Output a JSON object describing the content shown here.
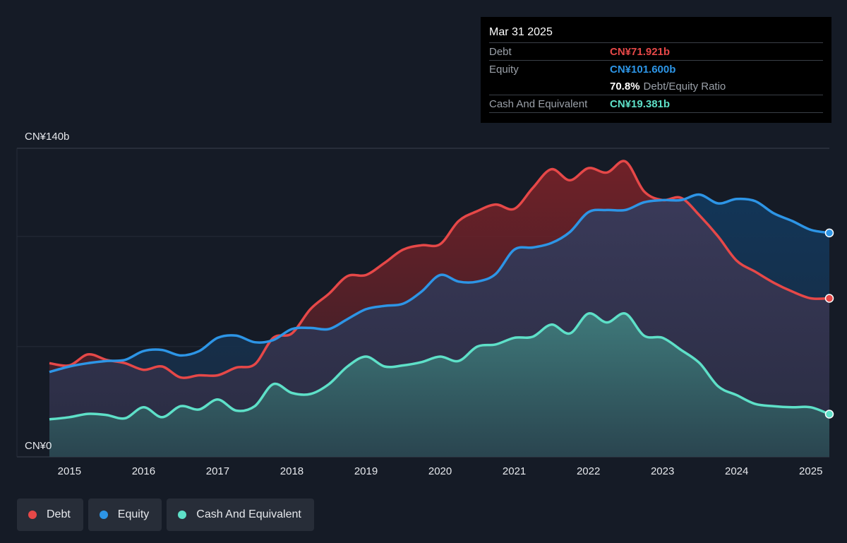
{
  "chart_data": {
    "type": "area",
    "ylim": [
      0,
      140
    ],
    "y_tick_labels": [
      "CN¥140b",
      "CN¥0"
    ],
    "x_ticks": [
      2015,
      2016,
      2017,
      2018,
      2019,
      2020,
      2021,
      2022,
      2023,
      2024,
      2025
    ],
    "x_range": [
      2014.73,
      2025.25
    ],
    "grid": true,
    "legend_position": "bottom-left",
    "series": [
      {
        "name": "Debt",
        "color": "#e64848",
        "x": [
          2014.73,
          2015.0,
          2015.25,
          2015.5,
          2015.75,
          2016.0,
          2016.25,
          2016.5,
          2016.75,
          2017.0,
          2017.25,
          2017.5,
          2017.75,
          2018.0,
          2018.25,
          2018.5,
          2018.75,
          2019.0,
          2019.25,
          2019.5,
          2019.75,
          2020.0,
          2020.25,
          2020.5,
          2020.75,
          2021.0,
          2021.25,
          2021.5,
          2021.75,
          2022.0,
          2022.25,
          2022.5,
          2022.75,
          2023.0,
          2023.25,
          2023.5,
          2023.75,
          2024.0,
          2024.25,
          2024.5,
          2024.75,
          2025.0,
          2025.25
        ],
        "values": [
          42.5,
          41.5,
          46.5,
          44,
          42.5,
          39.5,
          41,
          36,
          37,
          37,
          40.5,
          42,
          54,
          56,
          67,
          74,
          82,
          82.5,
          88,
          94,
          96,
          96.5,
          107,
          111.5,
          114.5,
          112.5,
          122,
          130.5,
          125.5,
          131,
          129,
          134,
          120.5,
          116.5,
          117.5,
          109.5,
          100,
          89,
          84,
          79,
          75,
          71.921,
          71.921
        ]
      },
      {
        "name": "Equity",
        "color": "#2d95e6",
        "x": [
          2014.73,
          2015.0,
          2015.25,
          2015.5,
          2015.75,
          2016.0,
          2016.25,
          2016.5,
          2016.75,
          2017.0,
          2017.25,
          2017.5,
          2017.75,
          2018.0,
          2018.25,
          2018.5,
          2018.75,
          2019.0,
          2019.25,
          2019.5,
          2019.75,
          2020.0,
          2020.25,
          2020.5,
          2020.75,
          2021.0,
          2021.25,
          2021.5,
          2021.75,
          2022.0,
          2022.25,
          2022.5,
          2022.75,
          2023.0,
          2023.25,
          2023.5,
          2023.75,
          2024.0,
          2024.25,
          2024.5,
          2024.75,
          2025.0,
          2025.25
        ],
        "values": [
          38.5,
          41,
          42.5,
          43.5,
          44,
          48,
          48.5,
          46,
          48,
          54,
          55,
          52,
          53,
          58,
          58.5,
          58,
          62.5,
          67,
          68.5,
          69.5,
          75,
          82.5,
          79.5,
          79.5,
          83,
          94,
          95,
          97,
          102,
          111,
          112,
          112,
          115.5,
          116.5,
          116.5,
          119,
          115,
          117,
          116,
          110.5,
          107,
          103,
          101.6
        ]
      },
      {
        "name": "Cash And Equivalent",
        "color": "#5ee0c8",
        "x": [
          2014.73,
          2015.0,
          2015.25,
          2015.5,
          2015.75,
          2016.0,
          2016.25,
          2016.5,
          2016.75,
          2017.0,
          2017.25,
          2017.5,
          2017.75,
          2018.0,
          2018.25,
          2018.5,
          2018.75,
          2019.0,
          2019.25,
          2019.5,
          2019.75,
          2020.0,
          2020.25,
          2020.5,
          2020.75,
          2021.0,
          2021.25,
          2021.5,
          2021.75,
          2022.0,
          2022.25,
          2022.5,
          2022.75,
          2023.0,
          2023.25,
          2023.5,
          2023.75,
          2024.0,
          2024.25,
          2024.5,
          2024.75,
          2025.0,
          2025.25
        ],
        "values": [
          17,
          18,
          19.5,
          19,
          17.5,
          22.5,
          18,
          23,
          21.5,
          26,
          21,
          23,
          33,
          29,
          28.5,
          33,
          41,
          45.5,
          41,
          41.5,
          43,
          45.5,
          43.5,
          50,
          51,
          54,
          54.5,
          60,
          56,
          65,
          61,
          65,
          55,
          54,
          48.5,
          42.5,
          32,
          28,
          24,
          23,
          22.5,
          22.5,
          19.381
        ]
      }
    ]
  },
  "tooltip": {
    "date": "Mar 31 2025",
    "rows": [
      {
        "label": "Debt",
        "value": "CN¥71.921b",
        "color": "#e64848"
      },
      {
        "label": "Equity",
        "value": "CN¥101.600b",
        "color": "#2d95e6"
      }
    ],
    "ratio_value": "70.8%",
    "ratio_label": "Debt/Equity Ratio",
    "cash": {
      "label": "Cash And Equivalent",
      "value": "CN¥19.381b",
      "color": "#5ee0c8"
    }
  },
  "legend": [
    {
      "label": "Debt",
      "color": "#e64848"
    },
    {
      "label": "Equity",
      "color": "#2d95e6"
    },
    {
      "label": "Cash And Equivalent",
      "color": "#5ee0c8"
    }
  ]
}
